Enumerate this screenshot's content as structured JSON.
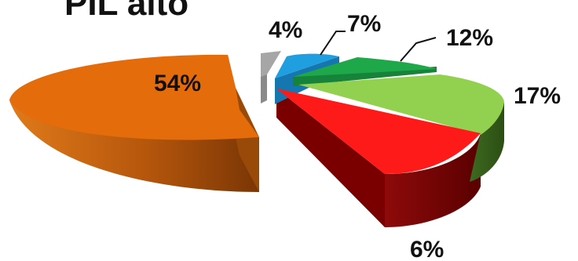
{
  "chart_data": {
    "type": "pie",
    "title": "PIL alto",
    "style": "3d-exploded",
    "slices": [
      {
        "label": "54%",
        "value": 54,
        "color": "#E46C0A"
      },
      {
        "label": "4%",
        "value": 4,
        "color": "#A6A6A6"
      },
      {
        "label": "7%",
        "value": 7,
        "color": "#1F9FE0"
      },
      {
        "label": "12%",
        "value": 12,
        "color": "#1FA84A"
      },
      {
        "label": "17%",
        "value": 17,
        "color": "#92D050"
      },
      {
        "label": "6%",
        "value": 6,
        "color": "#FF1A1A"
      }
    ]
  }
}
